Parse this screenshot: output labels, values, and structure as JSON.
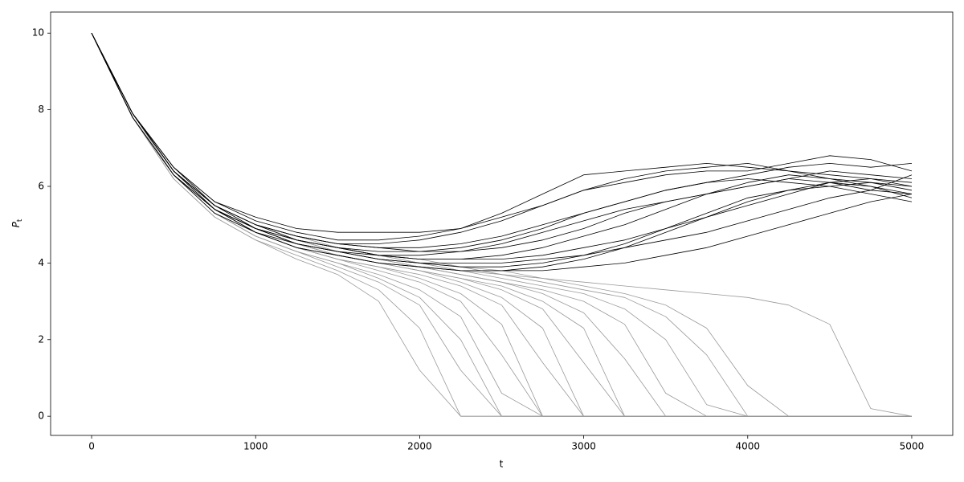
{
  "chart_data": {
    "type": "line",
    "x_label": "t",
    "y_label": "P",
    "y_label_sub": "t",
    "xlim": [
      -250,
      5250
    ],
    "ylim": [
      -0.5,
      10.55
    ],
    "xticks": [
      0,
      1000,
      2000,
      3000,
      4000,
      5000
    ],
    "yticks": [
      0,
      2,
      4,
      6,
      8,
      10
    ],
    "grid": false,
    "x": [
      0,
      250,
      500,
      750,
      1000,
      1250,
      1500,
      1750,
      2000,
      2250,
      2500,
      2750,
      3000,
      3250,
      3500,
      3750,
      4000,
      4250,
      4500,
      4750,
      5000
    ],
    "series": [
      {
        "color": "#999999",
        "values": [
          10,
          7.8,
          6.2,
          5.2,
          4.6,
          4.1,
          3.7,
          3.0,
          1.2,
          0,
          0,
          0,
          0,
          0,
          0,
          0,
          0,
          0,
          0,
          0,
          0
        ]
      },
      {
        "color": "#999999",
        "values": [
          10,
          7.8,
          6.2,
          5.2,
          4.6,
          4.2,
          3.8,
          3.3,
          2.3,
          0,
          0,
          0,
          0,
          0,
          0,
          0,
          0,
          0,
          0,
          0,
          0
        ]
      },
      {
        "color": "#999999",
        "values": [
          10,
          7.8,
          6.3,
          5.3,
          4.7,
          4.3,
          3.9,
          3.5,
          2.9,
          1.2,
          0,
          0,
          0,
          0,
          0,
          0,
          0,
          0,
          0,
          0,
          0
        ]
      },
      {
        "color": "#999999",
        "values": [
          10,
          7.9,
          6.3,
          5.3,
          4.7,
          4.3,
          4.0,
          3.6,
          3.1,
          2.0,
          0,
          0,
          0,
          0,
          0,
          0,
          0,
          0,
          0,
          0,
          0
        ]
      },
      {
        "color": "#999999",
        "values": [
          10,
          7.8,
          6.3,
          5.3,
          4.7,
          4.3,
          4.0,
          3.7,
          3.3,
          2.6,
          0.6,
          0,
          0,
          0,
          0,
          0,
          0,
          0,
          0,
          0,
          0
        ]
      },
      {
        "color": "#999999",
        "values": [
          10,
          7.9,
          6.4,
          5.4,
          4.8,
          4.4,
          4.1,
          3.8,
          3.5,
          3.0,
          1.6,
          0,
          0,
          0,
          0,
          0,
          0,
          0,
          0,
          0,
          0
        ]
      },
      {
        "color": "#999999",
        "values": [
          10,
          7.9,
          6.3,
          5.3,
          4.8,
          4.4,
          4.1,
          3.9,
          3.6,
          3.2,
          2.4,
          0,
          0,
          0,
          0,
          0,
          0,
          0,
          0,
          0,
          0
        ]
      },
      {
        "color": "#999999",
        "values": [
          10,
          7.9,
          6.4,
          5.4,
          4.8,
          4.4,
          4.1,
          3.9,
          3.7,
          3.4,
          2.9,
          1.4,
          0,
          0,
          0,
          0,
          0,
          0,
          0,
          0,
          0
        ]
      },
      {
        "color": "#999999",
        "values": [
          10,
          7.9,
          6.4,
          5.4,
          4.9,
          4.5,
          4.2,
          4.0,
          3.8,
          3.5,
          3.1,
          2.3,
          0,
          0,
          0,
          0,
          0,
          0,
          0,
          0,
          0
        ]
      },
      {
        "color": "#999999",
        "values": [
          10,
          7.9,
          6.4,
          5.4,
          4.9,
          4.5,
          4.2,
          4.0,
          3.8,
          3.6,
          3.3,
          2.8,
          1.4,
          0,
          0,
          0,
          0,
          0,
          0,
          0,
          0
        ]
      },
      {
        "color": "#999999",
        "values": [
          10,
          7.9,
          6.4,
          5.4,
          4.9,
          4.5,
          4.2,
          4.0,
          3.8,
          3.6,
          3.4,
          3.0,
          2.3,
          0,
          0,
          0,
          0,
          0,
          0,
          0,
          0
        ]
      },
      {
        "color": "#999999",
        "values": [
          10,
          7.9,
          6.4,
          5.4,
          4.9,
          4.5,
          4.3,
          4.1,
          3.9,
          3.7,
          3.5,
          3.2,
          2.7,
          1.5,
          0,
          0,
          0,
          0,
          0,
          0,
          0
        ]
      },
      {
        "color": "#999999",
        "values": [
          10,
          7.9,
          6.4,
          5.5,
          4.9,
          4.6,
          4.3,
          4.1,
          3.9,
          3.7,
          3.5,
          3.3,
          3.0,
          2.4,
          0.6,
          0,
          0,
          0,
          0,
          0,
          0
        ]
      },
      {
        "color": "#999999",
        "values": [
          10,
          7.9,
          6.4,
          5.5,
          5.0,
          4.6,
          4.3,
          4.1,
          4.0,
          3.8,
          3.6,
          3.4,
          3.2,
          2.8,
          2.0,
          0.3,
          0,
          0,
          0,
          0,
          0
        ]
      },
      {
        "color": "#999999",
        "values": [
          10,
          7.9,
          6.4,
          5.5,
          5.0,
          4.6,
          4.4,
          4.2,
          4.0,
          3.8,
          3.7,
          3.5,
          3.3,
          3.1,
          2.6,
          1.6,
          0,
          0,
          0,
          0,
          0
        ]
      },
      {
        "color": "#999999",
        "values": [
          10,
          7.9,
          6.4,
          5.5,
          5.0,
          4.6,
          4.4,
          4.2,
          4.0,
          3.9,
          3.7,
          3.6,
          3.4,
          3.2,
          2.9,
          2.3,
          0.8,
          0,
          0,
          0,
          0
        ]
      },
      {
        "color": "#999999",
        "values": [
          10,
          7.9,
          6.5,
          5.5,
          5.0,
          4.7,
          4.4,
          4.2,
          4.1,
          3.9,
          3.8,
          3.6,
          3.5,
          3.4,
          3.3,
          3.2,
          3.1,
          2.9,
          2.4,
          0.2,
          0
        ]
      },
      {
        "color": "#000000",
        "values": [
          10,
          7.9,
          6.5,
          5.6,
          5.1,
          4.8,
          4.6,
          4.6,
          4.7,
          4.9,
          5.3,
          5.8,
          6.3,
          6.4,
          6.5,
          6.6,
          6.5,
          6.4,
          6.3,
          6.2,
          6.1
        ]
      },
      {
        "color": "#000000",
        "values": [
          10,
          7.9,
          6.4,
          5.5,
          5.0,
          4.7,
          4.5,
          4.5,
          4.6,
          4.8,
          5.1,
          5.5,
          5.9,
          6.2,
          6.4,
          6.5,
          6.6,
          6.4,
          6.2,
          6.1,
          6.0
        ]
      },
      {
        "color": "#000000",
        "values": [
          10,
          7.8,
          6.3,
          5.4,
          4.9,
          4.6,
          4.4,
          4.3,
          4.3,
          4.4,
          4.6,
          4.9,
          5.3,
          5.6,
          5.9,
          6.1,
          6.3,
          6.5,
          6.6,
          6.5,
          6.6
        ]
      },
      {
        "color": "#000000",
        "values": [
          10,
          7.9,
          6.4,
          5.5,
          4.9,
          4.6,
          4.4,
          4.2,
          4.1,
          4.1,
          4.2,
          4.4,
          4.7,
          5.0,
          5.4,
          5.8,
          6.1,
          6.3,
          6.2,
          6.0,
          5.8
        ]
      },
      {
        "color": "#000000",
        "values": [
          10,
          7.8,
          6.3,
          5.4,
          4.8,
          4.4,
          4.2,
          4.0,
          3.9,
          3.8,
          3.8,
          3.9,
          4.1,
          4.4,
          4.8,
          5.2,
          5.6,
          5.9,
          6.0,
          6.1,
          5.9
        ]
      },
      {
        "color": "#000000",
        "values": [
          10,
          7.9,
          6.5,
          5.5,
          5.0,
          4.7,
          4.5,
          4.4,
          4.3,
          4.3,
          4.4,
          4.6,
          4.9,
          5.3,
          5.6,
          5.8,
          6.0,
          6.2,
          6.4,
          6.3,
          6.2
        ]
      },
      {
        "color": "#000000",
        "values": [
          10,
          7.8,
          6.3,
          5.3,
          4.8,
          4.4,
          4.2,
          4.0,
          3.9,
          3.8,
          3.8,
          3.8,
          3.9,
          4.0,
          4.2,
          4.4,
          4.7,
          5.0,
          5.3,
          5.6,
          5.8
        ]
      },
      {
        "color": "#000000",
        "values": [
          10,
          7.9,
          6.4,
          5.4,
          4.9,
          4.5,
          4.3,
          4.1,
          4.0,
          3.9,
          3.9,
          4.0,
          4.2,
          4.5,
          4.9,
          5.3,
          5.7,
          5.9,
          6.1,
          6.0,
          5.7
        ]
      },
      {
        "color": "#000000",
        "values": [
          10,
          7.9,
          6.5,
          5.6,
          5.2,
          4.9,
          4.8,
          4.8,
          4.8,
          4.9,
          5.2,
          5.5,
          5.9,
          6.1,
          6.3,
          6.4,
          6.4,
          6.6,
          6.8,
          6.7,
          6.4
        ]
      },
      {
        "color": "#000000",
        "values": [
          10,
          7.9,
          6.4,
          5.5,
          5.0,
          4.6,
          4.4,
          4.2,
          4.1,
          4.1,
          4.1,
          4.2,
          4.4,
          4.6,
          4.9,
          5.2,
          5.5,
          5.8,
          6.1,
          6.2,
          6.0
        ]
      },
      {
        "color": "#000000",
        "values": [
          10,
          7.8,
          6.3,
          5.4,
          4.9,
          4.5,
          4.3,
          4.2,
          4.2,
          4.3,
          4.5,
          4.8,
          5.1,
          5.4,
          5.6,
          5.8,
          6.0,
          6.2,
          6.1,
          5.9,
          5.8
        ]
      },
      {
        "color": "#000000",
        "values": [
          10,
          7.9,
          6.4,
          5.5,
          5.0,
          4.7,
          4.5,
          4.4,
          4.4,
          4.5,
          4.7,
          5.0,
          5.3,
          5.6,
          5.9,
          6.1,
          6.2,
          6.1,
          6.0,
          5.8,
          5.6
        ]
      },
      {
        "color": "#000000",
        "values": [
          10,
          7.8,
          6.3,
          5.4,
          4.8,
          4.5,
          4.3,
          4.1,
          4.0,
          4.0,
          4.0,
          4.1,
          4.2,
          4.4,
          4.6,
          4.8,
          5.1,
          5.4,
          5.7,
          5.9,
          6.3
        ]
      }
    ]
  }
}
